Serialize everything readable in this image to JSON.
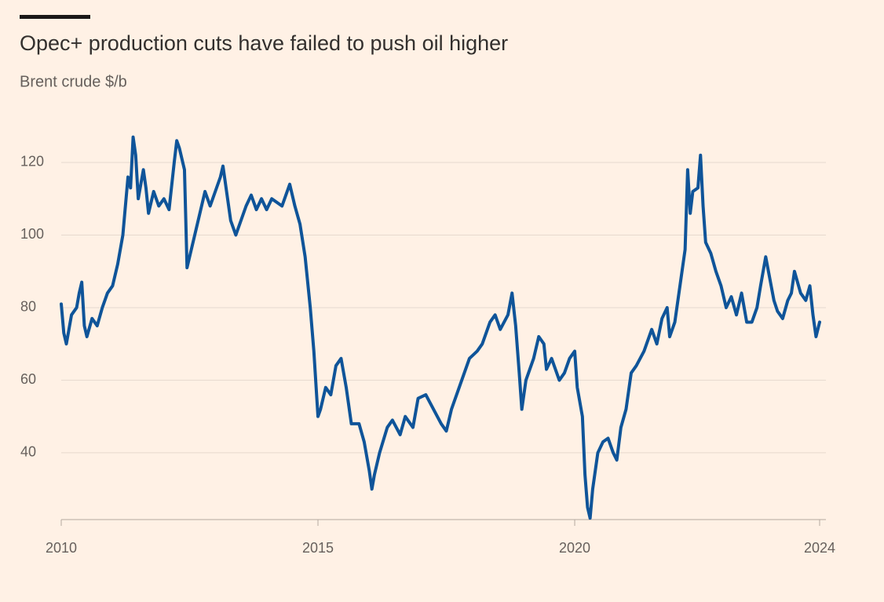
{
  "chart_data": {
    "type": "line",
    "title": "Opec+ production cuts have failed to push oil higher",
    "subtitle": "Brent crude $/b",
    "xlim": [
      2010,
      2024.77
    ],
    "xticks": [
      2010,
      2015,
      2020,
      {
        "value": 2024.77,
        "label": "2024"
      }
    ],
    "ylim": [
      21.6,
      130
    ],
    "yticks": [
      40,
      60,
      80,
      100,
      120
    ],
    "grid": true,
    "series": [
      {
        "name": "Brent crude",
        "color": "#0f5499",
        "x": [
          2010.0,
          2010.05,
          2010.1,
          2010.2,
          2010.3,
          2010.35,
          2010.4,
          2010.45,
          2010.5,
          2010.6,
          2010.7,
          2010.8,
          2010.9,
          2011.0,
          2011.1,
          2011.2,
          2011.25,
          2011.3,
          2011.35,
          2011.4,
          2011.45,
          2011.5,
          2011.6,
          2011.65,
          2011.7,
          2011.8,
          2011.9,
          2012.0,
          2012.1,
          2012.2,
          2012.25,
          2012.3,
          2012.4,
          2012.45,
          2012.55,
          2012.7,
          2012.8,
          2012.9,
          2013.0,
          2013.1,
          2013.15,
          2013.3,
          2013.4,
          2013.5,
          2013.6,
          2013.7,
          2013.8,
          2013.9,
          2014.0,
          2014.1,
          2014.3,
          2014.45,
          2014.55,
          2014.65,
          2014.75,
          2014.85,
          2014.92,
          2015.0,
          2015.05,
          2015.15,
          2015.25,
          2015.35,
          2015.45,
          2015.55,
          2015.65,
          2015.8,
          2015.9,
          2016.0,
          2016.05,
          2016.1,
          2016.2,
          2016.35,
          2016.45,
          2016.6,
          2016.7,
          2016.85,
          2016.95,
          2017.1,
          2017.25,
          2017.4,
          2017.5,
          2017.6,
          2017.7,
          2017.85,
          2017.95,
          2018.1,
          2018.2,
          2018.35,
          2018.45,
          2018.55,
          2018.7,
          2018.78,
          2018.85,
          2018.92,
          2018.97,
          2019.05,
          2019.2,
          2019.3,
          2019.4,
          2019.45,
          2019.55,
          2019.7,
          2019.8,
          2019.9,
          2020.0,
          2020.05,
          2020.15,
          2020.2,
          2020.25,
          2020.3,
          2020.35,
          2020.45,
          2020.55,
          2020.65,
          2020.75,
          2020.82,
          2020.9,
          2021.0,
          2021.1,
          2021.2,
          2021.35,
          2021.5,
          2021.6,
          2021.7,
          2021.8,
          2021.85,
          2021.95,
          2022.05,
          2022.15,
          2022.2,
          2022.25,
          2022.3,
          2022.4,
          2022.45,
          2022.5,
          2022.55,
          2022.65,
          2022.75,
          2022.85,
          2022.95,
          2023.05,
          2023.15,
          2023.25,
          2023.35,
          2023.45,
          2023.55,
          2023.62,
          2023.72,
          2023.8,
          2023.88,
          2023.95,
          2024.05,
          2024.15,
          2024.22,
          2024.28,
          2024.4,
          2024.5,
          2024.58,
          2024.64,
          2024.7,
          2024.77
        ],
        "values": [
          81,
          73,
          70,
          78,
          80,
          84,
          87,
          75,
          72,
          77,
          75,
          80,
          84,
          86,
          92,
          100,
          108,
          116,
          113,
          127,
          122,
          110,
          118,
          113,
          106,
          112,
          108,
          110,
          107,
          120,
          126,
          124,
          118,
          91,
          97,
          106,
          112,
          108,
          112,
          116,
          119,
          104,
          100,
          104,
          108,
          111,
          107,
          110,
          107,
          110,
          108,
          114,
          108,
          103,
          94,
          80,
          68,
          50,
          52,
          58,
          56,
          64,
          66,
          58,
          48,
          48,
          43,
          35,
          30,
          34,
          40,
          47,
          49,
          45,
          50,
          47,
          55,
          56,
          52,
          48,
          46,
          52,
          56,
          62,
          66,
          68,
          70,
          76,
          78,
          74,
          78,
          84,
          75,
          62,
          52,
          60,
          66,
          72,
          70,
          63,
          66,
          60,
          62,
          66,
          68,
          58,
          50,
          34,
          25,
          22,
          30,
          40,
          43,
          44,
          40,
          38,
          47,
          52,
          62,
          64,
          68,
          74,
          70,
          77,
          80,
          72,
          76,
          86,
          96,
          118,
          106,
          112,
          113,
          122,
          108,
          98,
          95,
          90,
          86,
          80,
          83,
          78,
          84,
          76,
          76,
          80,
          86,
          94,
          88,
          82,
          79,
          77,
          82,
          84,
          90,
          84,
          82,
          86,
          78,
          72,
          76
        ]
      }
    ]
  }
}
